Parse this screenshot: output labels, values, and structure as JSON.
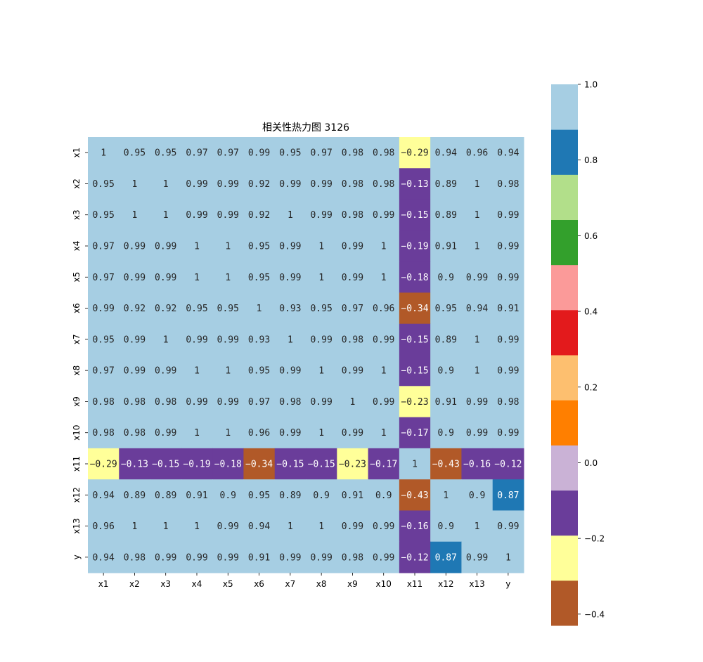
{
  "chart_data": {
    "type": "heatmap",
    "title": "相关性热力图 3126",
    "labels": [
      "x1",
      "x2",
      "x3",
      "x4",
      "x5",
      "x6",
      "x7",
      "x8",
      "x9",
      "x10",
      "x11",
      "x12",
      "x13",
      "y"
    ],
    "matrix": [
      [
        1,
        0.95,
        0.95,
        0.97,
        0.97,
        0.99,
        0.95,
        0.97,
        0.98,
        0.98,
        -0.29,
        0.94,
        0.96,
        0.94
      ],
      [
        0.95,
        1,
        1,
        0.99,
        0.99,
        0.92,
        0.99,
        0.99,
        0.98,
        0.98,
        -0.13,
        0.89,
        1,
        0.98
      ],
      [
        0.95,
        1,
        1,
        0.99,
        0.99,
        0.92,
        1,
        0.99,
        0.98,
        0.99,
        -0.15,
        0.89,
        1,
        0.99
      ],
      [
        0.97,
        0.99,
        0.99,
        1,
        1,
        0.95,
        0.99,
        1,
        0.99,
        1,
        -0.19,
        0.91,
        1,
        0.99
      ],
      [
        0.97,
        0.99,
        0.99,
        1,
        1,
        0.95,
        0.99,
        1,
        0.99,
        1,
        -0.18,
        0.9,
        0.99,
        0.99
      ],
      [
        0.99,
        0.92,
        0.92,
        0.95,
        0.95,
        1,
        0.93,
        0.95,
        0.97,
        0.96,
        -0.34,
        0.95,
        0.94,
        0.91
      ],
      [
        0.95,
        0.99,
        1,
        0.99,
        0.99,
        0.93,
        1,
        0.99,
        0.98,
        0.99,
        -0.15,
        0.89,
        1,
        0.99
      ],
      [
        0.97,
        0.99,
        0.99,
        1,
        1,
        0.95,
        0.99,
        1,
        0.99,
        1,
        -0.15,
        0.9,
        1,
        0.99
      ],
      [
        0.98,
        0.98,
        0.98,
        0.99,
        0.99,
        0.97,
        0.98,
        0.99,
        1,
        0.99,
        -0.23,
        0.91,
        0.99,
        0.98
      ],
      [
        0.98,
        0.98,
        0.99,
        1,
        1,
        0.96,
        0.99,
        1,
        0.99,
        1,
        -0.17,
        0.9,
        0.99,
        0.99
      ],
      [
        -0.29,
        -0.13,
        -0.15,
        -0.19,
        -0.18,
        -0.34,
        -0.15,
        -0.15,
        -0.23,
        -0.17,
        1,
        -0.43,
        -0.16,
        -0.12
      ],
      [
        0.94,
        0.89,
        0.89,
        0.91,
        0.9,
        0.95,
        0.89,
        0.9,
        0.91,
        0.9,
        -0.43,
        1,
        0.9,
        0.87
      ],
      [
        0.96,
        1,
        1,
        1,
        0.99,
        0.94,
        1,
        1,
        0.99,
        0.99,
        -0.16,
        0.9,
        1,
        0.99
      ],
      [
        0.94,
        0.98,
        0.99,
        0.99,
        0.99,
        0.91,
        0.99,
        0.99,
        0.98,
        0.99,
        -0.12,
        0.87,
        0.99,
        1
      ]
    ],
    "vmin": -0.43,
    "vmax": 1.0,
    "colormap": [
      "#b15928",
      "#ffff99",
      "#6a3d9a",
      "#cab2d6",
      "#ff7f00",
      "#fdbf6f",
      "#e31a1c",
      "#fb9a99",
      "#33a02c",
      "#b2df8a",
      "#1f78b4",
      "#a6cee3"
    ],
    "colorbar": {
      "ticks": [
        1.0,
        0.8,
        0.6,
        0.4,
        0.2,
        0.0,
        -0.2,
        -0.4
      ],
      "tick_labels": [
        "1.0",
        "0.8",
        "0.6",
        "0.4",
        "0.2",
        "0.0",
        "−0.2",
        "−0.4"
      ]
    },
    "legend_placement": "right",
    "grid": false
  }
}
